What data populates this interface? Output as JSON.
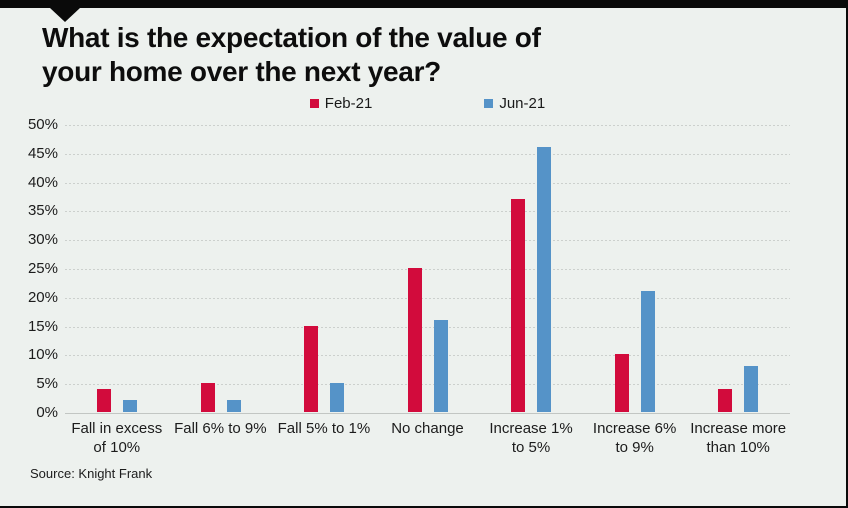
{
  "page": {
    "title_lines": [
      "What is the expectation of the value of",
      "your home over the next year?"
    ],
    "source": "Source: Knight Frank"
  },
  "colors": {
    "feb_red": "#d20b3c",
    "jun_blue": "#5593c8",
    "background": "#edf1ee",
    "top_bar": "#0a0a0a",
    "gridline": "#ccd0cd"
  },
  "chart_data": {
    "type": "bar",
    "title": "What is the expectation of the value of your home over the next year?",
    "categories": [
      "Fall in excess of 10%",
      "Fall 6% to 9%",
      "Fall 5% to 1%",
      "No change",
      "Increase 1% to 5%",
      "Increase 6% to 9%",
      "Increase more than 10%"
    ],
    "category_label_lines": [
      [
        "Fall in excess",
        "of 10%"
      ],
      [
        "Fall 6% to 9%"
      ],
      [
        "Fall 5% to 1%"
      ],
      [
        "No change"
      ],
      [
        "Increase 1%",
        "to 5%"
      ],
      [
        "Increase 6%",
        "to 9%"
      ],
      [
        "Increase more",
        "than 10%"
      ]
    ],
    "series": [
      {
        "name": "Feb-21",
        "color": "#d20b3c",
        "values": [
          4,
          5,
          15,
          25,
          37,
          10,
          4
        ]
      },
      {
        "name": "Jun-21",
        "color": "#5593c8",
        "values": [
          2,
          2,
          5,
          16,
          46,
          21,
          8
        ]
      }
    ],
    "ylim": [
      0,
      50
    ],
    "ytick_step": 5,
    "ytick_labels": [
      "0%",
      "5%",
      "10%",
      "15%",
      "20%",
      "25%",
      "30%",
      "35%",
      "40%",
      "45%",
      "50%"
    ],
    "xlabel": "",
    "ylabel": "",
    "grid": true,
    "legend_position": "top"
  }
}
